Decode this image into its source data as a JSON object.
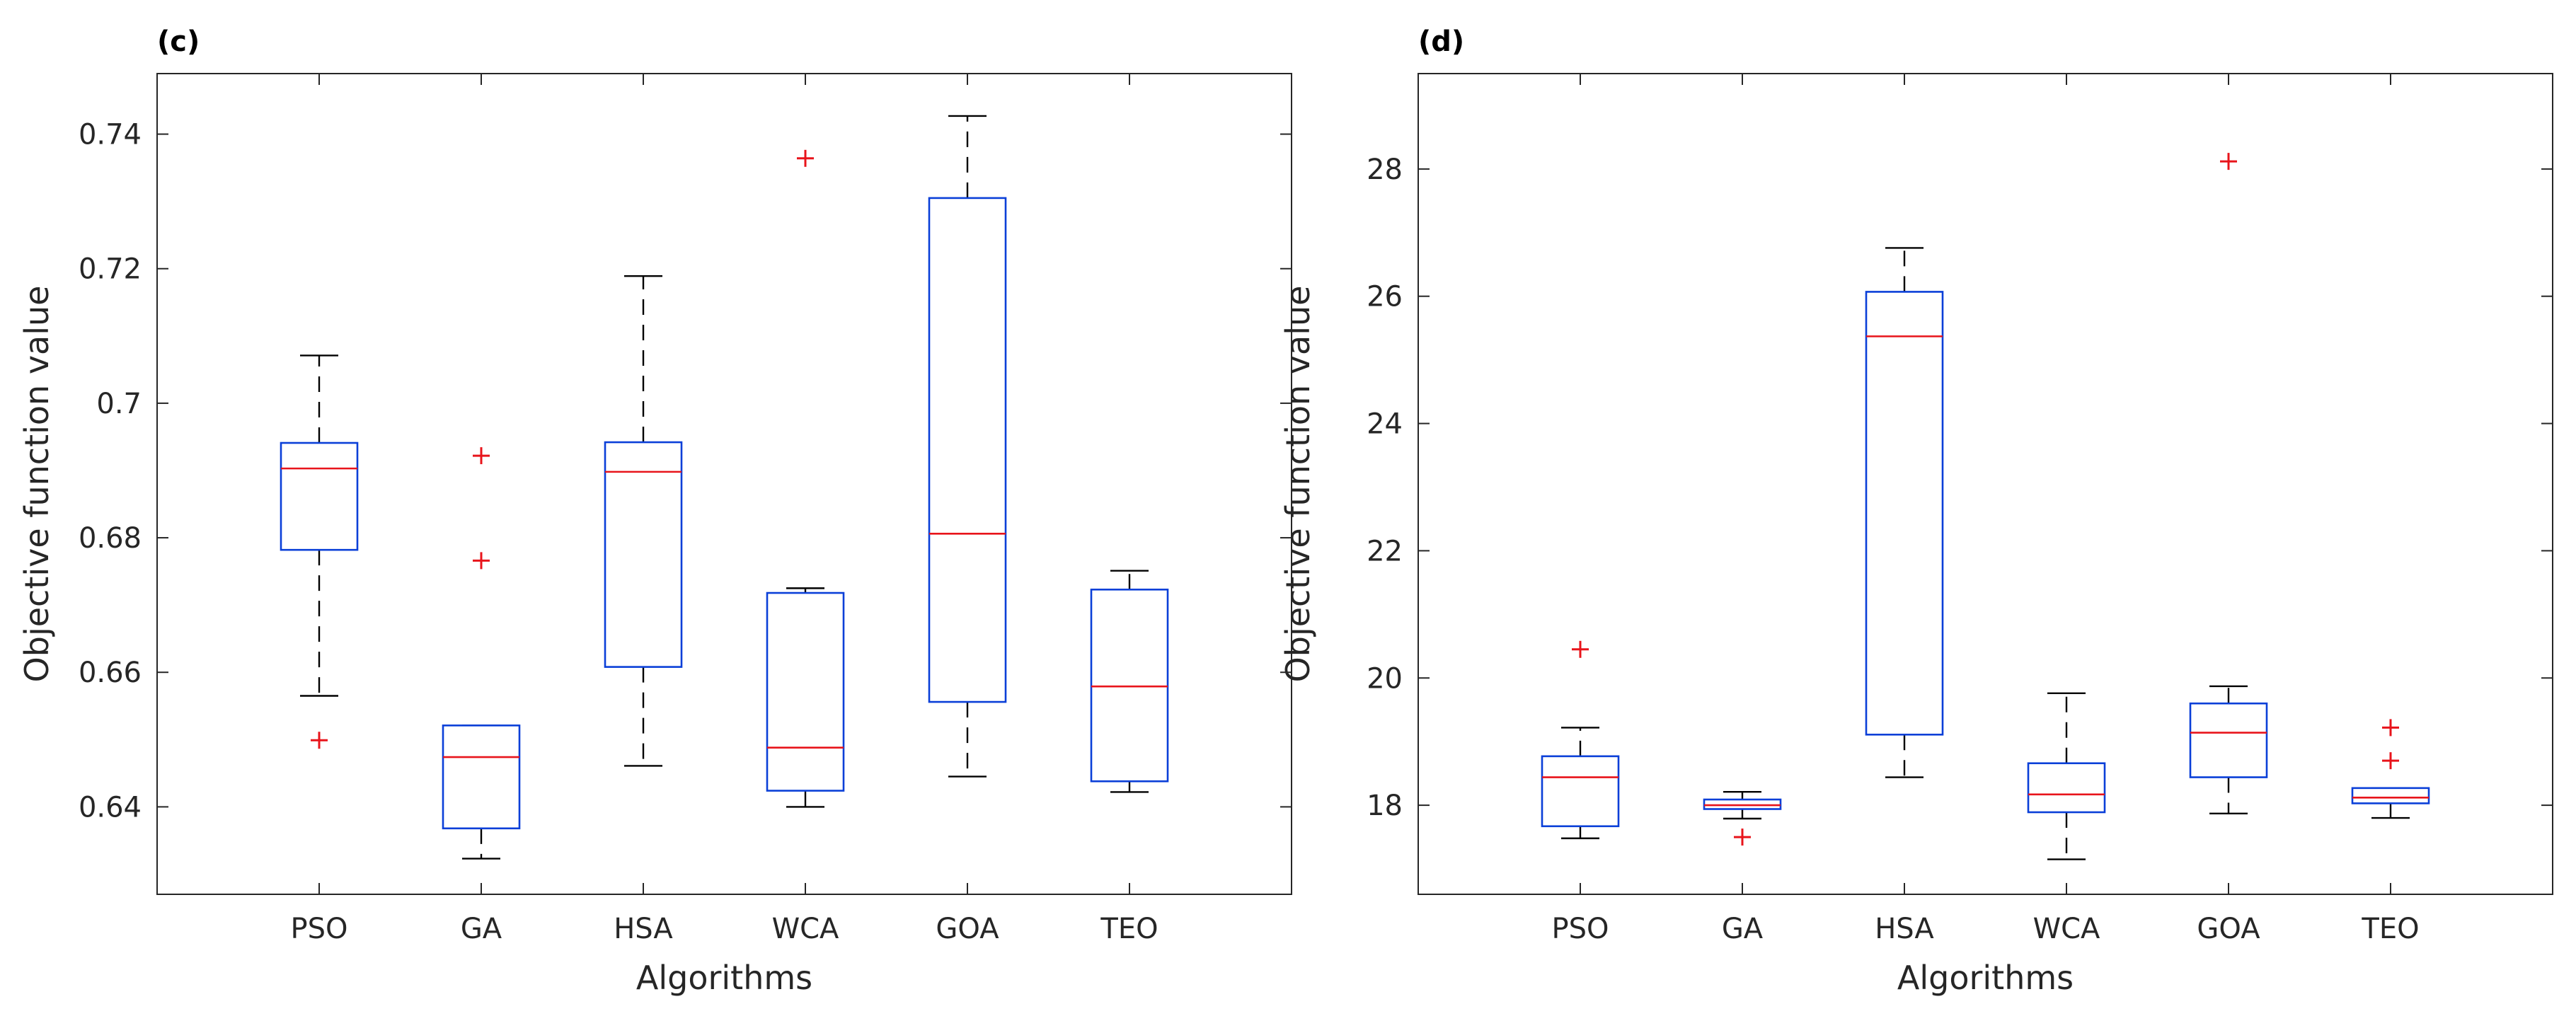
{
  "chart_data": [
    {
      "type": "box",
      "panel_label": "(c)",
      "xlabel": "Algorithms",
      "ylabel": "Objective function value",
      "ylim": [
        0.627,
        0.749
      ],
      "yticks": [
        0.64,
        0.66,
        0.68,
        0.7,
        0.72,
        0.74
      ],
      "ytick_labels": [
        "0.64",
        "0.66",
        "0.68",
        "0.7",
        "0.72",
        "0.74"
      ],
      "categories": [
        "PSO",
        "GA",
        "HSA",
        "WCA",
        "GOA",
        "TEO"
      ],
      "boxes": [
        {
          "name": "PSO",
          "whisker_low": 0.6565,
          "q1": 0.6782,
          "median": 0.6903,
          "q3": 0.6941,
          "whisker_high": 0.7071,
          "outliers": [
            0.6499
          ]
        },
        {
          "name": "GA",
          "whisker_low": 0.6323,
          "q1": 0.6368,
          "median": 0.6474,
          "q3": 0.6521,
          "whisker_high": 0.6521,
          "outliers": [
            0.6922,
            0.6766
          ]
        },
        {
          "name": "HSA",
          "whisker_low": 0.6461,
          "q1": 0.6608,
          "median": 0.6898,
          "q3": 0.6942,
          "whisker_high": 0.7189,
          "outliers": []
        },
        {
          "name": "WCA",
          "whisker_low": 0.64,
          "q1": 0.6424,
          "median": 0.6488,
          "q3": 0.6718,
          "whisker_high": 0.6725,
          "outliers": [
            0.7364
          ]
        },
        {
          "name": "GOA",
          "whisker_low": 0.6445,
          "q1": 0.6556,
          "median": 0.6806,
          "q3": 0.7305,
          "whisker_high": 0.7427,
          "outliers": []
        },
        {
          "name": "TEO",
          "whisker_low": 0.6422,
          "q1": 0.6438,
          "median": 0.6579,
          "q3": 0.6723,
          "whisker_high": 0.6751,
          "outliers": []
        }
      ],
      "colors": {
        "box": "#0a3fd8",
        "median": "#e8141b",
        "whisker": "#000000",
        "outlier": "#e8141b",
        "axes": "#262626"
      }
    },
    {
      "type": "box",
      "panel_label": "(d)",
      "xlabel": "Algorithms",
      "ylabel": "Objective function value",
      "ylim": [
        16.6,
        29.5
      ],
      "yticks": [
        18,
        20,
        22,
        24,
        26,
        28
      ],
      "ytick_labels": [
        "18",
        "20",
        "22",
        "24",
        "26",
        "28"
      ],
      "categories": [
        "PSO",
        "GA",
        "HSA",
        "WCA",
        "GOA",
        "TEO"
      ],
      "boxes": [
        {
          "name": "PSO",
          "whisker_low": 17.48,
          "q1": 17.67,
          "median": 18.44,
          "q3": 18.77,
          "whisker_high": 19.22,
          "outliers": [
            20.45
          ]
        },
        {
          "name": "GA",
          "whisker_low": 17.79,
          "q1": 17.94,
          "median": 18.0,
          "q3": 18.09,
          "whisker_high": 18.21,
          "outliers": [
            17.5
          ]
        },
        {
          "name": "HSA",
          "whisker_low": 18.44,
          "q1": 19.11,
          "median": 25.37,
          "q3": 26.07,
          "whisker_high": 26.76,
          "outliers": []
        },
        {
          "name": "WCA",
          "whisker_low": 17.15,
          "q1": 17.89,
          "median": 18.17,
          "q3": 18.66,
          "whisker_high": 19.76,
          "outliers": []
        },
        {
          "name": "GOA",
          "whisker_low": 17.87,
          "q1": 18.44,
          "median": 19.14,
          "q3": 19.6,
          "whisker_high": 19.87,
          "outliers": [
            28.12
          ]
        },
        {
          "name": "TEO",
          "whisker_low": 17.8,
          "q1": 18.03,
          "median": 18.12,
          "q3": 18.27,
          "whisker_high": 18.27,
          "outliers": [
            19.22,
            18.7
          ]
        }
      ],
      "colors": {
        "box": "#0a3fd8",
        "median": "#e8141b",
        "whisker": "#000000",
        "outlier": "#e8141b",
        "axes": "#262626"
      }
    }
  ]
}
